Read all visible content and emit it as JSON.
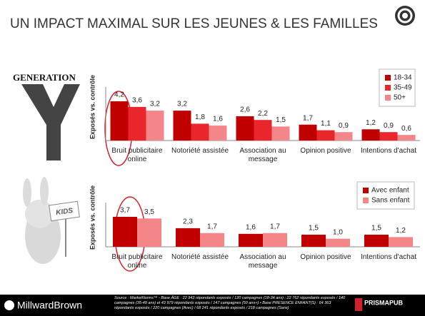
{
  "title": "UN IMPACT MAXIMAL SUR LES JEUNES & LES FAMILLES",
  "images": {
    "generation": "GENERATION",
    "kids": "KIDS"
  },
  "chart_data": [
    {
      "type": "bar",
      "y_label": "Exposés vs. contrôle",
      "categories": [
        "Bruit publicitaire online",
        "Notoriété assistée",
        "Association au message",
        "Opinion positive",
        "Intentions d'achat"
      ],
      "series": [
        {
          "name": "18-34",
          "color": "#c00000",
          "values": [
            4.2,
            3.2,
            2.6,
            1.7,
            1.2
          ],
          "value_labels": [
            "4,2",
            "3,2",
            "2,6",
            "1,7",
            "1,2"
          ]
        },
        {
          "name": "35-49",
          "color": "#e8262b",
          "values": [
            3.6,
            1.8,
            2.2,
            1.1,
            0.9
          ],
          "value_labels": [
            "3,6",
            "1,8",
            "2,2",
            "1,1",
            "0,9"
          ]
        },
        {
          "name": "50+",
          "color": "#f4868a",
          "values": [
            3.2,
            1.6,
            1.5,
            0.9,
            0.6
          ],
          "value_labels": [
            "3,2",
            "1,6",
            "1,5",
            "0,9",
            "0,6"
          ]
        }
      ],
      "legend": "top-right"
    },
    {
      "type": "bar",
      "y_label": "Exposés vs. contrôle",
      "categories": [
        "Bruit publicitaire online",
        "Notoriété assistée",
        "Association au message",
        "Opinion positive",
        "Intentions d'achat"
      ],
      "series": [
        {
          "name": "Avec enfant",
          "color": "#c00000",
          "values": [
            3.7,
            2.3,
            1.6,
            1.5,
            1.5
          ],
          "value_labels": [
            "3,7",
            "2,3",
            "1,6",
            "1,5",
            "1,5"
          ]
        },
        {
          "name": "Sans enfant",
          "color": "#f4868a",
          "values": [
            3.5,
            1.7,
            1.7,
            1.0,
            1.2
          ],
          "value_labels": [
            "3,5",
            "1,7",
            "1,7",
            "1,0",
            "1,2"
          ]
        }
      ],
      "legend": "top-right"
    }
  ],
  "footer": {
    "brand": "MillwardBrown",
    "source": "Source : MarketNorms™ - Base ÂGE : 22 943 répondants exposés / 120 campagnes (18-34 ans) ; 22 762 répondants exposés / 140 campagnes (35-49 ans) et 43 979 répondants exposés / 147 campagnes (50 ans+) • Base PRESENCE ENFANT(S) : 64 363 répondants exposés / 220 campagnes (Avec) / 68 241 répondants exposés / 218 campagnes (Sans)",
    "partner": "PRISMAPUB"
  }
}
